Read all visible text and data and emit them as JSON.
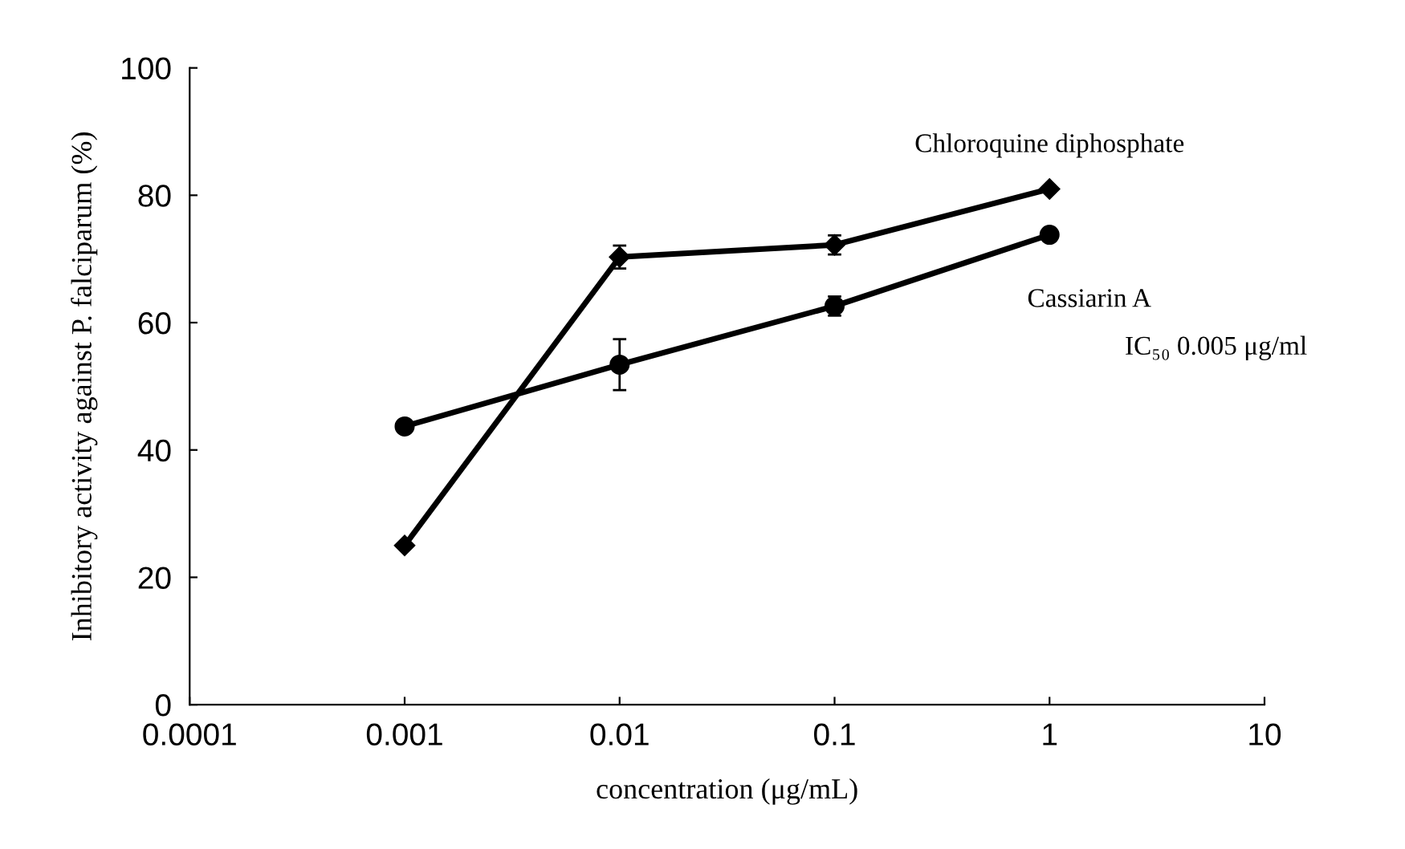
{
  "chart_data": {
    "type": "line",
    "xlabel": "concentration (μg/mL)",
    "ylabel": "Inhibitory activity against P. falciparum (%)",
    "log": "x",
    "xlim": [
      0.0001,
      10
    ],
    "xticks": [
      {
        "value": 0.0001,
        "label": "0.0001"
      },
      {
        "value": 0.001,
        "label": "0.001"
      },
      {
        "value": 0.01,
        "label": "0.01"
      },
      {
        "value": 0.1,
        "label": "0.1"
      },
      {
        "value": 1,
        "label": "1"
      },
      {
        "value": 10,
        "label": "10"
      }
    ],
    "ylim": [
      0,
      100
    ],
    "yticks": [
      0,
      20,
      40,
      60,
      80,
      100
    ],
    "grid": false,
    "legend": false,
    "line_style": "solid",
    "x": [
      0.001,
      0.01,
      0.1,
      1
    ],
    "series": [
      {
        "name": "Chloroquine diphosphate",
        "color": "#000000",
        "marker": "diamond",
        "values": [
          25,
          70.3,
          72.2,
          81
        ],
        "errors": [
          null,
          1.8,
          1.5,
          null
        ]
      },
      {
        "name": "Cassiarin A",
        "color": "#000000",
        "marker": "circle",
        "values": [
          43.7,
          53.4,
          62.6,
          73.8
        ],
        "errors": [
          null,
          4,
          1.5,
          null
        ]
      }
    ],
    "annotations": [
      "IC₅₀ 0.005 μg/ml"
    ]
  }
}
